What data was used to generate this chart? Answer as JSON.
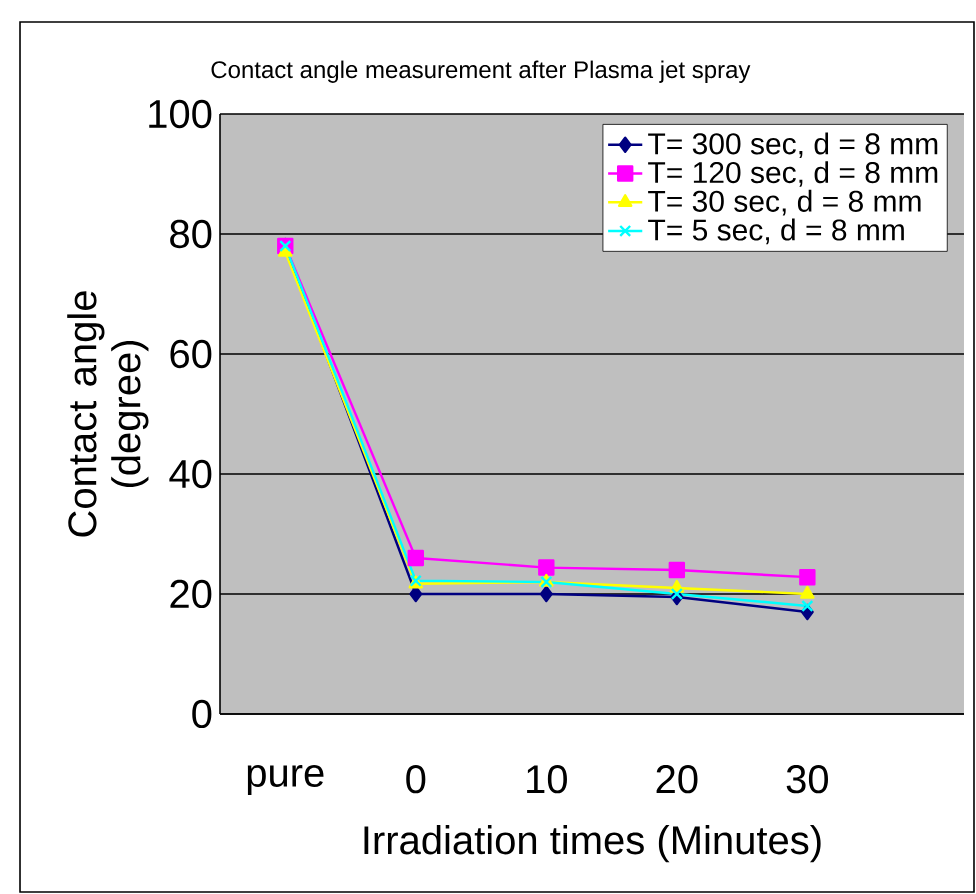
{
  "chart_data": {
    "type": "line",
    "title": "Contact angle measurement after Plasma jet spray",
    "xlabel": "Irradiation times (Minutes)",
    "ylabel": "Contact angle (degree)",
    "categories": [
      "pure",
      "0",
      "10",
      "20",
      "30"
    ],
    "ylim": [
      0,
      100
    ],
    "yticks": [
      0,
      20,
      40,
      60,
      80,
      100
    ],
    "grid": "y",
    "legend": "top right",
    "series": [
      {
        "name": "T= 300 sec, d = 8 mm",
        "color": "#000080",
        "marker": "diamond",
        "values": [
          78,
          20,
          20,
          19.5,
          17
        ]
      },
      {
        "name": "T= 120 sec, d = 8 mm",
        "color": "#ff00ff",
        "marker": "square",
        "values": [
          78,
          26,
          24.4,
          24,
          22.8
        ]
      },
      {
        "name": "T= 30 sec, d = 8 mm",
        "color": "#ffff00",
        "marker": "triangle",
        "values": [
          77,
          21.7,
          22,
          21,
          20
        ]
      },
      {
        "name": "T= 5 sec, d = 8 mm",
        "color": "#00ffff",
        "marker": "cross",
        "values": [
          78,
          22.2,
          22,
          20,
          18
        ]
      }
    ]
  }
}
